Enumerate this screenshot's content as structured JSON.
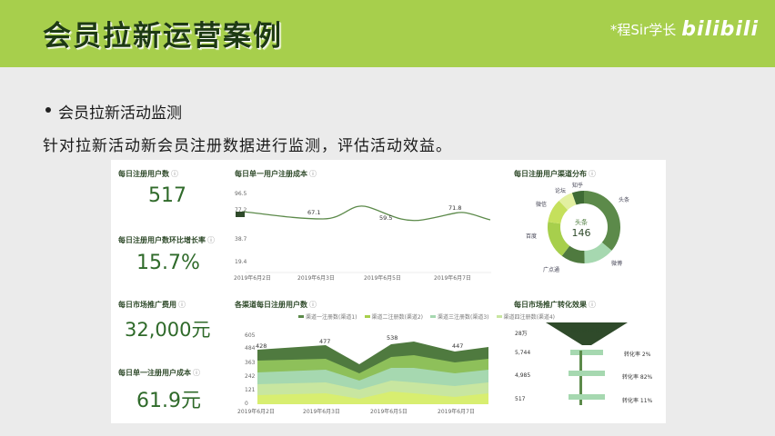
{
  "header": {
    "title": "会员拉新运营案例",
    "brand_name": "*程Sir学长",
    "brand_logo": "bilibili"
  },
  "section": {
    "title": "会员拉新活动监测",
    "description": "针对拉新活动新会员注册数据进行监测，评估活动效益。"
  },
  "kpis": {
    "daily_registered": {
      "label": "每日注册用户数",
      "value": "517"
    },
    "growth_rate": {
      "label": "每日注册用户数环比增长率",
      "value": "15.7%"
    },
    "marketing_cost": {
      "label": "每日市场推广费用",
      "value": "32,000元"
    },
    "unit_cost": {
      "label": "每日单一注册用户成本",
      "value": "61.9元"
    }
  },
  "colors": {
    "accent": "#a7cf4c",
    "dark_green": "#2f4a2a",
    "mid_green": "#5c8a4a",
    "light_green": "#b7d98a",
    "pale_green": "#a6d8b0"
  },
  "chart_data": [
    {
      "type": "line",
      "title": "每日单一用户注册成本",
      "x": [
        "2019年6月2日",
        "2019年6月3日",
        "2019年6月5日",
        "2019年6月7日"
      ],
      "y_ticks": [
        "96.5",
        "77.2",
        "57.9",
        "38.7",
        "19.4"
      ],
      "data_labels": [
        "77.2",
        "67.1",
        "59.5",
        "71.8"
      ],
      "values": [
        77.2,
        67.1,
        59.5,
        71.8
      ]
    },
    {
      "type": "area",
      "title": "各渠道每日注册用户数",
      "legend": [
        "渠道一注册数(渠道1)",
        "渠道二注册数(渠道2)",
        "渠道三注册数(渠道3)",
        "渠道四注册数(渠道4)"
      ],
      "x": [
        "2019年6月2日",
        "2019年6月3日",
        "2019年6月5日",
        "2019年6月7日"
      ],
      "y_ticks": [
        "605",
        "484",
        "363",
        "242",
        "121",
        "0"
      ],
      "data_labels": [
        "428",
        "477",
        "538",
        "447"
      ],
      "totals": [
        428,
        477,
        538,
        447
      ]
    },
    {
      "type": "pie",
      "title": "每日注册用户渠道分布",
      "center_label": "头条",
      "center_value": "146",
      "labels": [
        "知乎",
        "头条",
        "微博",
        "广点通",
        "百度",
        "微信",
        "论坛"
      ]
    },
    {
      "type": "funnel",
      "title": "每日市场推广转化效果",
      "header_label": "曝光数(单位)",
      "left_values": [
        "28万",
        "5,744",
        "4,985",
        "517"
      ],
      "right_labels": [
        "转化率 2%",
        "转化率 82%",
        "转化率 11%"
      ]
    }
  ]
}
